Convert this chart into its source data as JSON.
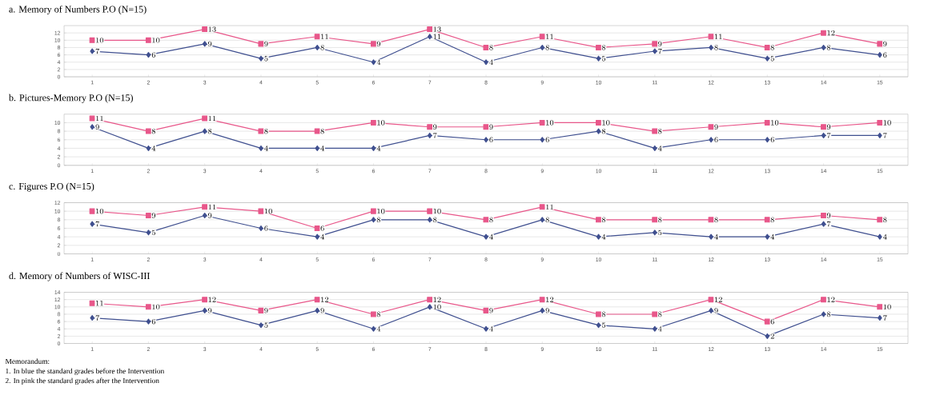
{
  "chart_data": [
    {
      "type": "line",
      "title": "a.   Memory of Numbers P.O (N=15)",
      "categories": [
        "1",
        "2",
        "3",
        "4",
        "5",
        "6",
        "7",
        "8",
        "9",
        "10",
        "11",
        "12",
        "13",
        "14",
        "15"
      ],
      "ylim": [
        0,
        14
      ],
      "yticks": [
        0,
        2,
        4,
        6,
        8,
        10,
        12
      ],
      "grid": "y",
      "data_labels": true,
      "series": [
        {
          "color": "#3f4f8f",
          "marker": "diamond",
          "values": [
            7,
            6,
            9,
            5,
            8,
            4,
            11,
            4,
            8,
            5,
            7,
            8,
            5,
            8,
            6
          ]
        },
        {
          "color": "#e8578a",
          "marker": "square",
          "values": [
            10,
            10,
            13,
            9,
            11,
            9,
            13,
            8,
            11,
            8,
            9,
            11,
            8,
            12,
            9
          ]
        }
      ]
    },
    {
      "type": "line",
      "title": "b.   Pictures-Memory P.O (N=15)",
      "categories": [
        "1",
        "2",
        "3",
        "4",
        "5",
        "6",
        "7",
        "8",
        "9",
        "10",
        "11",
        "12",
        "13",
        "14",
        "15"
      ],
      "ylim": [
        0,
        12
      ],
      "yticks": [
        0,
        2,
        4,
        6,
        8,
        10
      ],
      "grid": "y",
      "data_labels": true,
      "series": [
        {
          "color": "#3f4f8f",
          "marker": "diamond",
          "values": [
            9,
            4,
            8,
            4,
            4,
            4,
            7,
            6,
            6,
            8,
            4,
            6,
            6,
            7,
            7
          ]
        },
        {
          "color": "#e8578a",
          "marker": "square",
          "values": [
            11,
            8,
            11,
            8,
            8,
            10,
            9,
            9,
            10,
            10,
            8,
            9,
            10,
            9,
            10
          ]
        }
      ]
    },
    {
      "type": "line",
      "title": "c.   Figures P.O (N=15)",
      "categories": [
        "1",
        "2",
        "3",
        "4",
        "5",
        "6",
        "7",
        "8",
        "9",
        "10",
        "11",
        "12",
        "13",
        "14",
        "15"
      ],
      "ylim": [
        0,
        12
      ],
      "yticks": [
        0,
        2,
        4,
        6,
        8,
        10,
        12
      ],
      "grid": "y",
      "data_labels": true,
      "series": [
        {
          "color": "#3f4f8f",
          "marker": "diamond",
          "values": [
            7,
            5,
            9,
            6,
            4,
            8,
            8,
            4,
            8,
            4,
            5,
            4,
            4,
            7,
            4
          ]
        },
        {
          "color": "#e8578a",
          "marker": "square",
          "values": [
            10,
            9,
            11,
            10,
            6,
            10,
            10,
            8,
            11,
            8,
            8,
            8,
            8,
            9,
            8
          ]
        }
      ]
    },
    {
      "type": "line",
      "title": "d.   Memory of Numbers of  WISC-III",
      "categories": [
        "1",
        "2",
        "3",
        "4",
        "5",
        "6",
        "7",
        "8",
        "9",
        "10",
        "11",
        "12",
        "13",
        "14",
        "15"
      ],
      "ylim": [
        0,
        14
      ],
      "yticks": [
        0,
        2,
        4,
        6,
        8,
        10,
        12,
        14
      ],
      "grid": "y",
      "data_labels": true,
      "annotations": [
        "Memorandum:",
        "1. In blue the standard grades before the Intervention",
        "2. In pink the standard grades after the Intervention"
      ],
      "series": [
        {
          "color": "#3f4f8f",
          "marker": "diamond",
          "values": [
            7,
            6,
            9,
            5,
            9,
            4,
            10,
            4,
            9,
            5,
            4,
            9,
            2,
            8,
            7
          ]
        },
        {
          "color": "#e8578a",
          "marker": "square",
          "values": [
            11,
            10,
            12,
            9,
            12,
            8,
            12,
            9,
            12,
            8,
            8,
            12,
            6,
            12,
            10
          ]
        }
      ]
    }
  ]
}
